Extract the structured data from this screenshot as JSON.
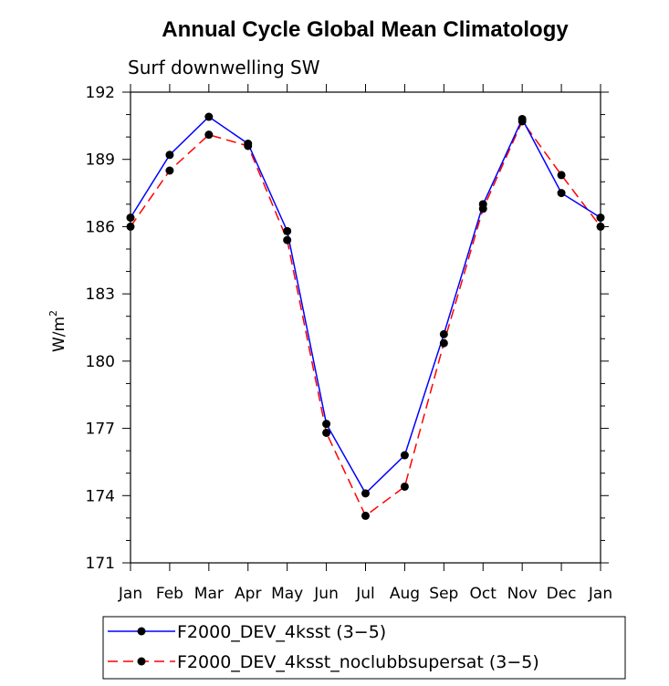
{
  "chart_data": {
    "type": "line",
    "title": "Annual Cycle Global Mean Climatology",
    "subtitle": "Surf downwelling SW",
    "ylabel": "W/m",
    "ylabel_sup": "2",
    "xlabel": "",
    "categories": [
      "Jan",
      "Feb",
      "Mar",
      "Apr",
      "May",
      "Jun",
      "Jul",
      "Aug",
      "Sep",
      "Oct",
      "Nov",
      "Dec",
      "Jan"
    ],
    "ylim": [
      171,
      192
    ],
    "yticks": [
      171,
      174,
      177,
      180,
      183,
      186,
      189,
      192
    ],
    "ytick_labels": [
      "171",
      "174",
      "177",
      "180",
      "183",
      "186",
      "189",
      "192"
    ],
    "series": [
      {
        "name": "F2000_DEV_4ksst (3-5)",
        "legend_label": "F2000_DEV_4ksst (3−5)",
        "color": "#0000ff",
        "dash": "solid",
        "marker_color": "#000000",
        "values": [
          186.4,
          189.2,
          190.9,
          189.7,
          185.8,
          177.2,
          174.1,
          175.8,
          181.2,
          187.0,
          190.8,
          187.5,
          186.4
        ]
      },
      {
        "name": "F2000_DEV_4ksst_noclubbsupersat (3-5)",
        "legend_label": "F2000_DEV_4ksst_noclubbsupersat (3−5)",
        "color": "#ff0000",
        "dash": "dashed",
        "marker_color": "#000000",
        "values": [
          186.0,
          188.5,
          190.1,
          189.6,
          185.4,
          176.8,
          173.1,
          174.4,
          180.8,
          186.8,
          190.7,
          188.3,
          186.0
        ]
      }
    ],
    "legend_position": "bottom"
  }
}
